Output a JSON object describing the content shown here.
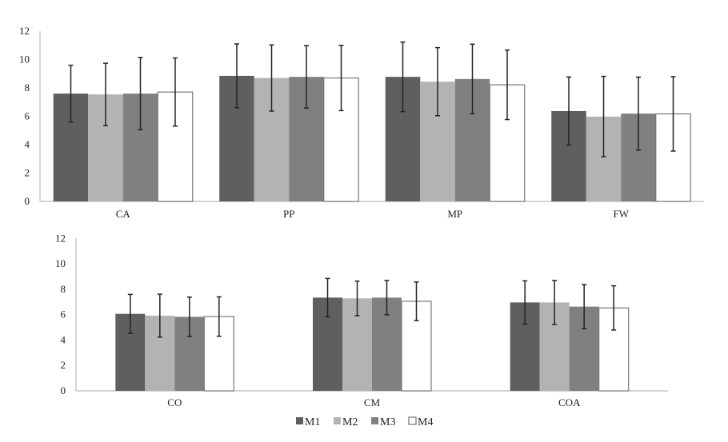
{
  "chart_data": [
    {
      "type": "bar",
      "title": "",
      "xlabel": "",
      "ylabel": "",
      "ylim": [
        0,
        12
      ],
      "yticks": [
        "0",
        "2",
        "4",
        "6",
        "8",
        "10",
        "12"
      ],
      "grid": false,
      "categories": [
        "CA",
        "PP",
        "MP",
        "FW"
      ],
      "series": [
        {
          "name": "M1",
          "values": [
            7.6,
            8.85,
            8.78,
            6.37
          ],
          "errors": [
            2.0,
            2.25,
            2.45,
            2.4
          ]
        },
        {
          "name": "M2",
          "values": [
            7.54,
            8.7,
            8.44,
            5.98
          ],
          "errors": [
            2.2,
            2.33,
            2.4,
            2.83
          ]
        },
        {
          "name": "M3",
          "values": [
            7.6,
            8.78,
            8.63,
            6.19
          ],
          "errors": [
            2.55,
            2.2,
            2.45,
            2.57
          ]
        },
        {
          "name": "M4",
          "values": [
            7.71,
            8.7,
            8.22,
            6.17
          ],
          "errors": [
            2.4,
            2.3,
            2.45,
            2.62
          ]
        }
      ]
    },
    {
      "type": "bar",
      "title": "",
      "xlabel": "",
      "ylabel": "",
      "ylim": [
        0,
        12
      ],
      "yticks": [
        "0",
        "2",
        "4",
        "6",
        "8",
        "10",
        "12"
      ],
      "grid": false,
      "categories": [
        "CO",
        "CM",
        "COA"
      ],
      "series": [
        {
          "name": "M1",
          "values": [
            6.06,
            7.34,
            6.96
          ],
          "errors": [
            1.53,
            1.51,
            1.7
          ]
        },
        {
          "name": "M2",
          "values": [
            5.92,
            7.28,
            6.96
          ],
          "errors": [
            1.69,
            1.36,
            1.73
          ]
        },
        {
          "name": "M3",
          "values": [
            5.83,
            7.34,
            6.63
          ],
          "errors": [
            1.55,
            1.35,
            1.74
          ]
        },
        {
          "name": "M4",
          "values": [
            5.85,
            7.05,
            6.53
          ],
          "errors": [
            1.55,
            1.52,
            1.74
          ]
        }
      ],
      "legend": {
        "placement": "bottom",
        "entries": [
          "M1",
          "M2",
          "M3",
          "M4"
        ]
      }
    }
  ],
  "colors": {
    "M1": "#5f5f5f",
    "M2": "#b3b3b3",
    "M3": "#808080",
    "M4": "#ffffff",
    "axis": "#bbbbbb",
    "error": "#222222"
  }
}
